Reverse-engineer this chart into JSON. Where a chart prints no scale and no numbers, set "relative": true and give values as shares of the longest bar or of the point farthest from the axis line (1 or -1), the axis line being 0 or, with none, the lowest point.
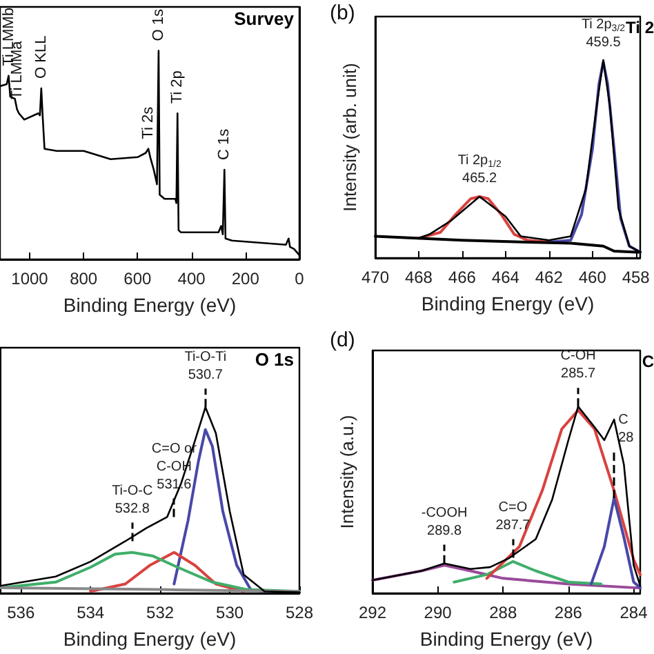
{
  "chart_data": [
    {
      "type": "line",
      "relative": true,
      "title": "Survey",
      "xlabel": "Binding Energy (eV)",
      "xlim": [
        1110,
        0
      ],
      "xticks": [
        1000,
        800,
        600,
        400,
        200,
        0
      ],
      "series": [
        {
          "color": "#000000",
          "x": [
            1110,
            1085,
            1078,
            1072,
            1055,
            1047,
            1040,
            1020,
            968,
            962,
            957,
            952,
            945,
            900,
            800,
            700,
            600,
            570,
            560,
            553,
            540,
            528,
            522,
            518,
            500,
            460,
            456,
            452,
            448,
            440,
            400,
            350,
            300,
            290,
            284,
            278,
            274,
            250,
            150,
            50,
            40,
            35,
            20,
            0
          ],
          "values": [
            0.83,
            0.84,
            0.88,
            0.78,
            0.77,
            0.72,
            0.7,
            0.67,
            0.7,
            0.69,
            0.82,
            0.69,
            0.53,
            0.52,
            0.52,
            0.48,
            0.49,
            0.51,
            0.53,
            0.49,
            0.43,
            0.36,
            1,
            0.31,
            0.29,
            0.29,
            0.27,
            0.7,
            0.14,
            0.13,
            0.13,
            0.13,
            0.13,
            0.16,
            0.12,
            0.43,
            0.1,
            0.09,
            0.08,
            0.07,
            0.1,
            0.06,
            0.05,
            0.02
          ]
        }
      ],
      "annotations": [
        {
          "text": "Ti LMMb",
          "x": 1078,
          "y": 0.88
        },
        {
          "text": "Ti LMMa",
          "x": 1047,
          "y": 0.72
        },
        {
          "text": "O KLL",
          "x": 957,
          "y": 0.82
        },
        {
          "text": "Ti 2s",
          "x": 560,
          "y": 0.53
        },
        {
          "text": "O 1s",
          "x": 522,
          "y": 1
        },
        {
          "text": "Ti 2p",
          "x": 452,
          "y": 0.7
        },
        {
          "text": "C 1s",
          "x": 278,
          "y": 0.43
        }
      ]
    },
    {
      "type": "line",
      "relative": true,
      "title": "Ti 2",
      "xlabel": "Binding Energy (eV)",
      "ylabel": "Intensity (arb. unit)",
      "xlim": [
        470,
        457.8
      ],
      "xticks": [
        470,
        468,
        466,
        464,
        462,
        460,
        458
      ],
      "series": [
        {
          "color": "#000000",
          "x": [
            470,
            468,
            467.5,
            466.5,
            465.2,
            464,
            463.3,
            462,
            461,
            460.3,
            459.8,
            459.5,
            459.2,
            458.8,
            458.3,
            457.8
          ],
          "values": [
            0.11,
            0.1,
            0.12,
            0.19,
            0.31,
            0.21,
            0.11,
            0.09,
            0.11,
            0.35,
            0.77,
            1,
            0.77,
            0.25,
            0.06,
            0.03
          ]
        },
        {
          "color": "#d9423f",
          "x": [
            468,
            467,
            466.3,
            465.6,
            465.2,
            464.8,
            464.2,
            463.6,
            463,
            462
          ],
          "values": [
            0.1,
            0.13,
            0.22,
            0.3,
            0.31,
            0.3,
            0.22,
            0.12,
            0.09,
            0.08
          ]
        },
        {
          "color": "#4848a8",
          "x": [
            462,
            461,
            460.5,
            460,
            459.7,
            459.5,
            459.3,
            459,
            458.7,
            458.3,
            457.8
          ],
          "values": [
            0.08,
            0.09,
            0.22,
            0.55,
            0.88,
            0.99,
            0.88,
            0.55,
            0.2,
            0.06,
            0.03
          ]
        },
        {
          "color": "#000000",
          "x": [
            470,
            466,
            463,
            461,
            459.5,
            459,
            458,
            457.8
          ],
          "values": [
            0.11,
            0.09,
            0.08,
            0.075,
            0.06,
            0.035,
            0.03,
            0.03
          ]
        }
      ],
      "annotations": [
        "(b)",
        {
          "text": "Ti 2p$_{1/2}$\n465.2",
          "x": 465.2,
          "y": 0.31
        },
        {
          "text": "Ti 2p$_{3/2}$\n459.5",
          "x": 459.5,
          "y": 1
        }
      ]
    },
    {
      "type": "line",
      "relative": true,
      "title": "O 1s",
      "xlabel": "Binding Energy (eV)",
      "xlim": [
        536.6,
        528
      ],
      "xticks": [
        536,
        534,
        532,
        530,
        528
      ],
      "series": [
        {
          "color": "#000000",
          "x": [
            536.6,
            535,
            534,
            533,
            532.4,
            531.8,
            531.4,
            531,
            530.7,
            530.4,
            530,
            529.6,
            529,
            528
          ],
          "values": [
            0.04,
            0.09,
            0.17,
            0.28,
            0.35,
            0.41,
            0.59,
            0.82,
            1,
            0.86,
            0.44,
            0.1,
            0.01,
            0.005
          ]
        },
        {
          "color": "#4848a8",
          "x": [
            531.6,
            531.2,
            530.9,
            530.7,
            530.5,
            530.2,
            529.8,
            529.4,
            529
          ],
          "values": [
            0.05,
            0.39,
            0.71,
            0.88,
            0.79,
            0.44,
            0.15,
            0.02,
            0.01
          ]
        },
        {
          "color": "#d9423f",
          "x": [
            534,
            533,
            532.3,
            531.6,
            531,
            530.4,
            529.6
          ],
          "values": [
            0.01,
            0.05,
            0.15,
            0.22,
            0.15,
            0.05,
            0.01
          ]
        },
        {
          "color": "#3fae6a",
          "x": [
            536.6,
            535,
            534,
            533.3,
            532.8,
            532.2,
            531.5,
            530.5,
            529.5,
            528
          ],
          "values": [
            0.03,
            0.06,
            0.14,
            0.21,
            0.22,
            0.2,
            0.14,
            0.06,
            0.02,
            0.01
          ]
        },
        {
          "color": "#888888",
          "x": [
            536.6,
            532,
            528
          ],
          "values": [
            0.03,
            0.02,
            0.01
          ]
        }
      ],
      "annotations": [
        {
          "text": "Ti-O-C\n532.8",
          "x": 532.8,
          "y": 0.28
        },
        {
          "text": "C=O or\nC-OH\n531.6",
          "x": 531.6,
          "y": 0.41
        },
        {
          "text": "Ti-O-Ti\n530.7",
          "x": 530.7,
          "y": 1
        }
      ]
    },
    {
      "type": "line",
      "relative": true,
      "title": "C",
      "xlabel": "Binding Energy (eV)",
      "ylabel": "Intensity (a.u.)",
      "xlim": [
        292,
        283.8
      ],
      "xticks": [
        292,
        290,
        288,
        286,
        284
      ],
      "series": [
        {
          "color": "#000000",
          "x": [
            292,
            290.5,
            289.8,
            289,
            288.4,
            287.8,
            287,
            286.5,
            286,
            285.7,
            285.2,
            284.9,
            284.6,
            284.3,
            284,
            283.8
          ],
          "values": [
            0.07,
            0.12,
            0.16,
            0.13,
            0.14,
            0.19,
            0.29,
            0.5,
            0.82,
            1,
            0.89,
            0.82,
            0.93,
            0.69,
            0.15,
            0.04
          ]
        },
        {
          "color": "#9a4a9a",
          "x": [
            292,
            290.5,
            289.8,
            289,
            288,
            286,
            284,
            283.8
          ],
          "values": [
            0.07,
            0.12,
            0.15,
            0.12,
            0.08,
            0.05,
            0.03,
            0.03
          ]
        },
        {
          "color": "#3fae6a",
          "x": [
            289.5,
            288.5,
            287.7,
            287,
            286,
            285
          ],
          "values": [
            0.06,
            0.1,
            0.17,
            0.12,
            0.06,
            0.05
          ]
        },
        {
          "color": "#d9423f",
          "x": [
            288.5,
            287.5,
            286.8,
            286.2,
            285.7,
            285.2,
            284.6,
            284,
            283.8
          ],
          "values": [
            0.08,
            0.25,
            0.55,
            0.88,
            0.98,
            0.88,
            0.55,
            0.18,
            0.1
          ]
        },
        {
          "color": "#4848a8",
          "x": [
            285.3,
            284.9,
            284.6,
            284.3,
            284,
            283.8
          ],
          "values": [
            0.05,
            0.25,
            0.51,
            0.3,
            0.06,
            0.03
          ]
        }
      ],
      "annotations": [
        "(d)",
        {
          "text": "-COOH\n289.8",
          "x": 289.8,
          "y": 0.16
        },
        {
          "text": "C=O\n287.7",
          "x": 287.7,
          "y": 0.19
        },
        {
          "text": "C-OH\n285.7",
          "x": 285.7,
          "y": 1
        },
        {
          "text": "C\n28",
          "x": 284.6,
          "y": 0.51
        }
      ]
    }
  ]
}
